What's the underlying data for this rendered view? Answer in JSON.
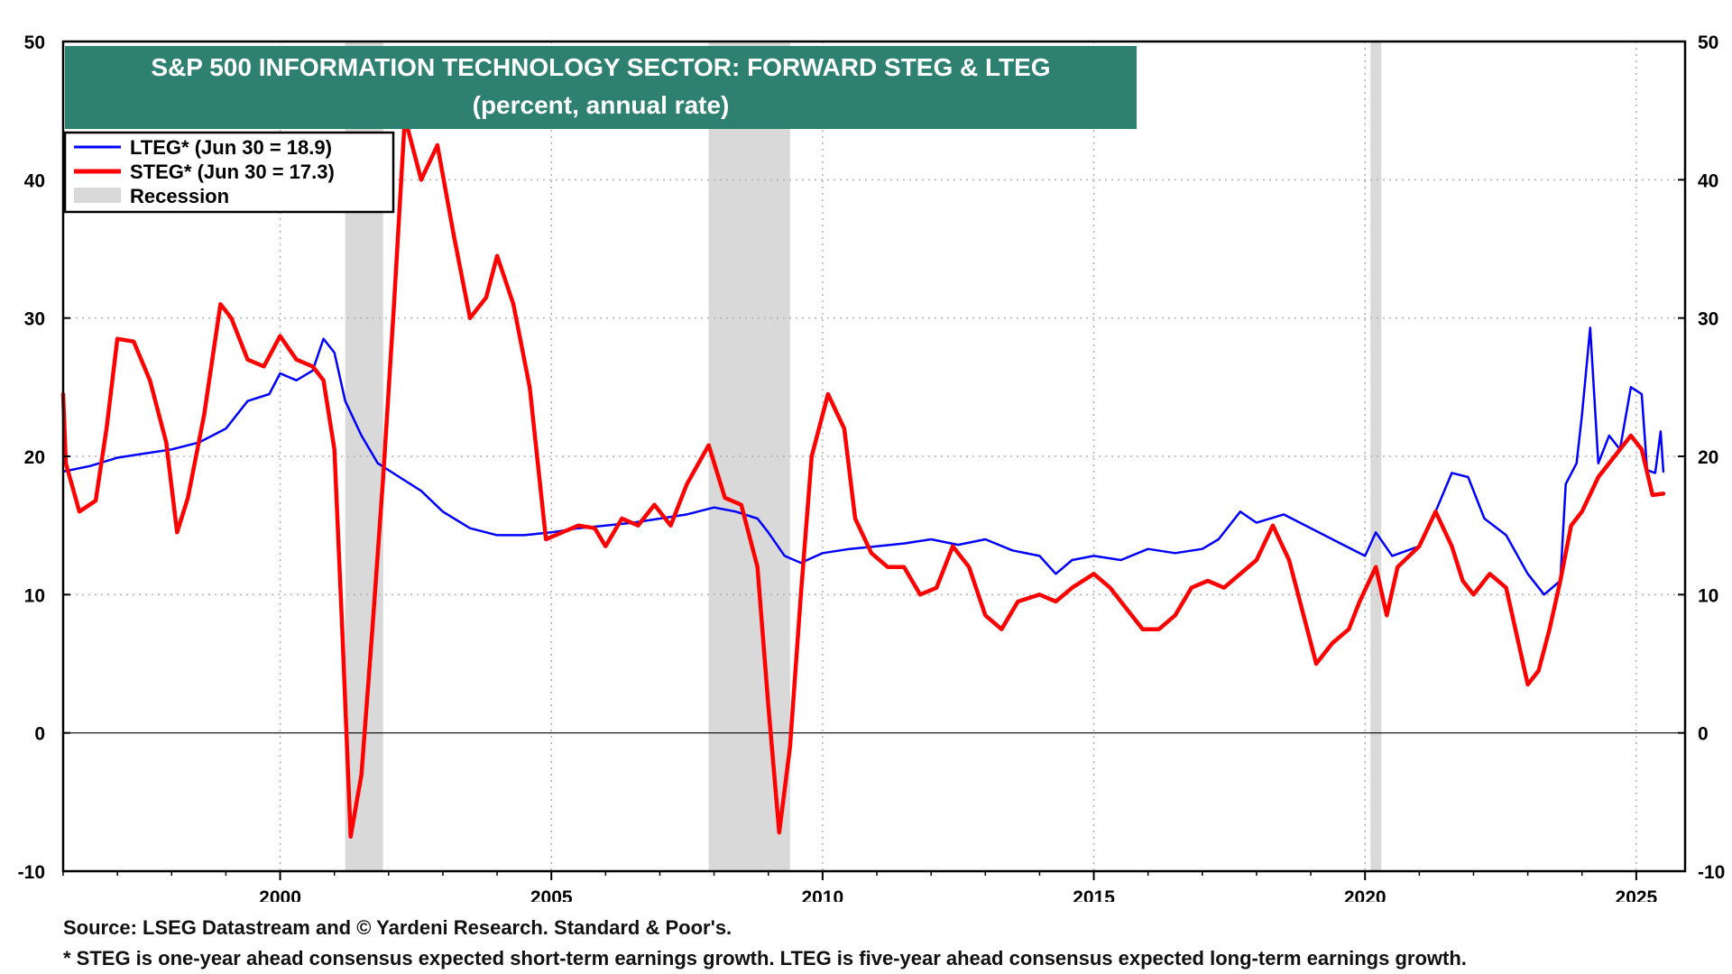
{
  "chart_data": {
    "type": "line",
    "title": "S&P 500 INFORMATION TECHNOLOGY SECTOR: FORWARD STEG & LTEG",
    "subtitle": "(percent, annual rate)",
    "xlabel": "",
    "ylabel": "",
    "xlim": [
      1996.0,
      2025.9
    ],
    "ylim": [
      -10,
      50
    ],
    "y_ticks": [
      -10,
      0,
      10,
      20,
      30,
      40,
      50
    ],
    "y_ticks_right": [
      -10,
      0,
      10,
      20,
      30,
      40,
      50
    ],
    "x_ticks": [
      2000,
      2005,
      2010,
      2015,
      2020,
      2025
    ],
    "grid": true,
    "legend_position": "top-left",
    "legend": [
      {
        "label": "LTEG* (Jun 30 = 18.9)",
        "color": "#0000ff",
        "kind": "line"
      },
      {
        "label": "STEG* (Jun 30 = 17.3)",
        "color": "#ff0000",
        "kind": "line"
      },
      {
        "label": "Recession",
        "color": "#d9d9d9",
        "kind": "box"
      }
    ],
    "recessions": [
      [
        2001.2,
        2001.9
      ],
      [
        2007.9,
        2009.4
      ],
      [
        2020.1,
        2020.3
      ]
    ],
    "series": [
      {
        "name": "LTEG*",
        "color": "#0000ff",
        "points": [
          [
            1996.0,
            18.9
          ],
          [
            1996.5,
            19.3
          ],
          [
            1997.0,
            19.9
          ],
          [
            1997.5,
            20.2
          ],
          [
            1998.0,
            20.5
          ],
          [
            1998.5,
            21.0
          ],
          [
            1999.0,
            22.0
          ],
          [
            1999.4,
            24.0
          ],
          [
            1999.8,
            24.5
          ],
          [
            2000.0,
            26.0
          ],
          [
            2000.3,
            25.5
          ],
          [
            2000.6,
            26.2
          ],
          [
            2000.8,
            28.5
          ],
          [
            2001.0,
            27.5
          ],
          [
            2001.2,
            24.0
          ],
          [
            2001.5,
            21.5
          ],
          [
            2001.8,
            19.5
          ],
          [
            2002.2,
            18.5
          ],
          [
            2002.6,
            17.5
          ],
          [
            2003.0,
            16.0
          ],
          [
            2003.5,
            14.8
          ],
          [
            2004.0,
            14.3
          ],
          [
            2004.5,
            14.3
          ],
          [
            2005.0,
            14.5
          ],
          [
            2005.5,
            14.8
          ],
          [
            2006.0,
            15.0
          ],
          [
            2006.5,
            15.2
          ],
          [
            2007.0,
            15.5
          ],
          [
            2007.5,
            15.8
          ],
          [
            2008.0,
            16.3
          ],
          [
            2008.4,
            16.0
          ],
          [
            2008.8,
            15.5
          ],
          [
            2009.0,
            14.5
          ],
          [
            2009.3,
            12.8
          ],
          [
            2009.6,
            12.3
          ],
          [
            2010.0,
            13.0
          ],
          [
            2010.5,
            13.3
          ],
          [
            2011.0,
            13.5
          ],
          [
            2011.5,
            13.7
          ],
          [
            2012.0,
            14.0
          ],
          [
            2012.5,
            13.6
          ],
          [
            2013.0,
            14.0
          ],
          [
            2013.5,
            13.2
          ],
          [
            2014.0,
            12.8
          ],
          [
            2014.3,
            11.5
          ],
          [
            2014.6,
            12.5
          ],
          [
            2015.0,
            12.8
          ],
          [
            2015.5,
            12.5
          ],
          [
            2016.0,
            13.3
          ],
          [
            2016.5,
            13.0
          ],
          [
            2017.0,
            13.3
          ],
          [
            2017.3,
            14.0
          ],
          [
            2017.7,
            16.0
          ],
          [
            2018.0,
            15.2
          ],
          [
            2018.5,
            15.8
          ],
          [
            2019.0,
            14.8
          ],
          [
            2019.5,
            13.8
          ],
          [
            2020.0,
            12.8
          ],
          [
            2020.2,
            14.5
          ],
          [
            2020.5,
            12.8
          ],
          [
            2021.0,
            13.5
          ],
          [
            2021.3,
            16.0
          ],
          [
            2021.6,
            18.8
          ],
          [
            2021.9,
            18.5
          ],
          [
            2022.2,
            15.5
          ],
          [
            2022.6,
            14.3
          ],
          [
            2023.0,
            11.5
          ],
          [
            2023.3,
            10.0
          ],
          [
            2023.6,
            11.0
          ],
          [
            2023.7,
            18.0
          ],
          [
            2023.9,
            19.5
          ],
          [
            2024.0,
            23.0
          ],
          [
            2024.15,
            29.3
          ],
          [
            2024.3,
            19.5
          ],
          [
            2024.5,
            21.5
          ],
          [
            2024.7,
            20.5
          ],
          [
            2024.9,
            25.0
          ],
          [
            2025.1,
            24.5
          ],
          [
            2025.2,
            19.0
          ],
          [
            2025.35,
            18.8
          ],
          [
            2025.45,
            21.8
          ],
          [
            2025.5,
            18.9
          ]
        ]
      },
      {
        "name": "STEG*",
        "color": "#ff0000",
        "points": [
          [
            1996.0,
            24.5
          ],
          [
            1996.05,
            19.5
          ],
          [
            1996.3,
            16.0
          ],
          [
            1996.6,
            16.8
          ],
          [
            1996.8,
            22.0
          ],
          [
            1997.0,
            28.5
          ],
          [
            1997.3,
            28.3
          ],
          [
            1997.6,
            25.5
          ],
          [
            1997.9,
            21.0
          ],
          [
            1998.1,
            14.5
          ],
          [
            1998.3,
            17.0
          ],
          [
            1998.6,
            23.0
          ],
          [
            1998.9,
            31.0
          ],
          [
            1999.1,
            30.0
          ],
          [
            1999.4,
            27.0
          ],
          [
            1999.7,
            26.5
          ],
          [
            2000.0,
            28.7
          ],
          [
            2000.3,
            27.0
          ],
          [
            2000.6,
            26.5
          ],
          [
            2000.8,
            25.5
          ],
          [
            2001.0,
            20.5
          ],
          [
            2001.15,
            7.0
          ],
          [
            2001.3,
            -7.5
          ],
          [
            2001.5,
            -3.0
          ],
          [
            2001.7,
            7.5
          ],
          [
            2001.9,
            18.5
          ],
          [
            2002.1,
            31.0
          ],
          [
            2002.3,
            44.5
          ],
          [
            2002.6,
            40.0
          ],
          [
            2002.9,
            42.5
          ],
          [
            2003.2,
            36.0
          ],
          [
            2003.5,
            30.0
          ],
          [
            2003.8,
            31.5
          ],
          [
            2004.0,
            34.5
          ],
          [
            2004.3,
            31.0
          ],
          [
            2004.6,
            25.0
          ],
          [
            2004.9,
            14.0
          ],
          [
            2005.2,
            14.5
          ],
          [
            2005.5,
            15.0
          ],
          [
            2005.8,
            14.8
          ],
          [
            2006.0,
            13.5
          ],
          [
            2006.3,
            15.5
          ],
          [
            2006.6,
            15.0
          ],
          [
            2006.9,
            16.5
          ],
          [
            2007.2,
            15.0
          ],
          [
            2007.5,
            18.0
          ],
          [
            2007.9,
            20.8
          ],
          [
            2008.2,
            17.0
          ],
          [
            2008.5,
            16.5
          ],
          [
            2008.8,
            12.0
          ],
          [
            2009.0,
            2.0
          ],
          [
            2009.2,
            -7.2
          ],
          [
            2009.4,
            -1.0
          ],
          [
            2009.6,
            10.0
          ],
          [
            2009.8,
            20.0
          ],
          [
            2010.1,
            24.5
          ],
          [
            2010.4,
            22.0
          ],
          [
            2010.6,
            15.5
          ],
          [
            2010.9,
            13.0
          ],
          [
            2011.2,
            12.0
          ],
          [
            2011.5,
            12.0
          ],
          [
            2011.8,
            10.0
          ],
          [
            2012.1,
            10.5
          ],
          [
            2012.4,
            13.5
          ],
          [
            2012.7,
            12.0
          ],
          [
            2013.0,
            8.5
          ],
          [
            2013.3,
            7.5
          ],
          [
            2013.6,
            9.5
          ],
          [
            2014.0,
            10.0
          ],
          [
            2014.3,
            9.5
          ],
          [
            2014.6,
            10.5
          ],
          [
            2015.0,
            11.5
          ],
          [
            2015.3,
            10.5
          ],
          [
            2015.6,
            9.0
          ],
          [
            2015.9,
            7.5
          ],
          [
            2016.2,
            7.5
          ],
          [
            2016.5,
            8.5
          ],
          [
            2016.8,
            10.5
          ],
          [
            2017.1,
            11.0
          ],
          [
            2017.4,
            10.5
          ],
          [
            2017.7,
            11.5
          ],
          [
            2018.0,
            12.5
          ],
          [
            2018.3,
            15.0
          ],
          [
            2018.6,
            12.5
          ],
          [
            2018.9,
            8.0
          ],
          [
            2019.1,
            5.0
          ],
          [
            2019.4,
            6.5
          ],
          [
            2019.7,
            7.5
          ],
          [
            2019.9,
            9.5
          ],
          [
            2020.2,
            12.0
          ],
          [
            2020.4,
            8.5
          ],
          [
            2020.6,
            12.0
          ],
          [
            2021.0,
            13.5
          ],
          [
            2021.3,
            16.0
          ],
          [
            2021.6,
            13.5
          ],
          [
            2021.8,
            11.0
          ],
          [
            2022.0,
            10.0
          ],
          [
            2022.3,
            11.5
          ],
          [
            2022.6,
            10.5
          ],
          [
            2022.8,
            7.0
          ],
          [
            2023.0,
            3.5
          ],
          [
            2023.2,
            4.5
          ],
          [
            2023.4,
            7.5
          ],
          [
            2023.6,
            11.0
          ],
          [
            2023.8,
            15.0
          ],
          [
            2024.0,
            16.0
          ],
          [
            2024.3,
            18.5
          ],
          [
            2024.6,
            20.0
          ],
          [
            2024.9,
            21.5
          ],
          [
            2025.1,
            20.5
          ],
          [
            2025.3,
            17.2
          ],
          [
            2025.5,
            17.3
          ]
        ]
      }
    ]
  },
  "footer": {
    "source": "Source: LSEG Datastream and © Yardeni Research. Standard & Poor's.",
    "note": "* STEG is one-year ahead consensus expected short-term earnings growth. LTEG is five-year ahead consensus expected long-term earnings growth."
  }
}
